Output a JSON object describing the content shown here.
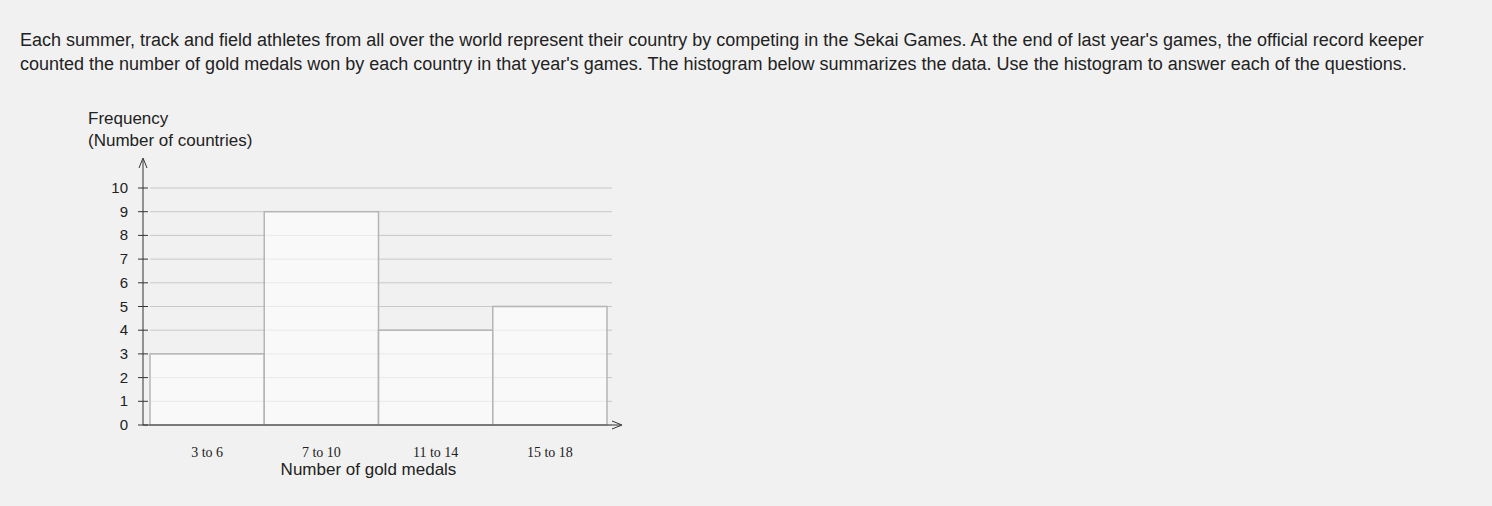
{
  "chart_data": {
    "type": "bar",
    "annotations": [
      "Each summer, track and field athletes from all over the world represent their country by competing in the Sekai Games. At the end of last year's games, the official record keeper counted the number of gold medals won by each country in that year's games. The histogram below summarizes the data. Use the histogram to answer each of the questions."
    ],
    "y_label": [
      "Frequency",
      "(Number of countries)"
    ],
    "x_label": "Number of gold medals",
    "categories": [
      "3 to 6",
      "7 to 10",
      "11 to 14",
      "15 to 18"
    ],
    "values": [
      3,
      9,
      4,
      5
    ],
    "color": "#ffffff",
    "ylim": [
      0,
      10
    ],
    "yticks": [
      0,
      1,
      2,
      3,
      4,
      5,
      6,
      7,
      8,
      9,
      10
    ],
    "grid": true
  }
}
